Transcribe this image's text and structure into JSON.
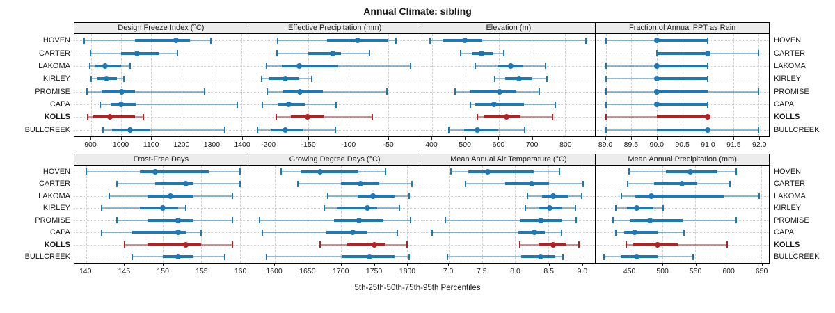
{
  "figure": {
    "title": "Annual Climate: sibling",
    "axis_caption": "5th-25th-50th-75th-95th Percentiles"
  },
  "chart_data": {
    "type": "scatter",
    "variant": "trellis dot plot with percentile intervals (5th, 25th, 50th, 75th, 95th); dot = median, thick bar = 25th-75th, thin capped line = 5th-95th",
    "stations": [
      "HOVEN",
      "CARTER",
      "LAKOMA",
      "KIRLEY",
      "PROMISE",
      "CAPA",
      "KOLLS",
      "BULLCREEK"
    ],
    "highlight_station": "KOLLS",
    "colors": {
      "series": "#1f77b4",
      "highlight": "#b22222",
      "header_bg": "#ececec",
      "grid": "#cfcfcf",
      "panel_border": "#000000"
    },
    "layout": {
      "rows": 2,
      "cols": 4,
      "legend": "none",
      "grid": "dashed",
      "station_labels": "both sides"
    },
    "panels": [
      {
        "title": "Design Freeze Index (°C)",
        "row": 0,
        "xlim": [
          845,
          1420
        ],
        "tick_values": [
          900,
          1000,
          1100,
          1200,
          1300,
          1400
        ],
        "tick_labels": [
          "900",
          "1000",
          "1100",
          "1200",
          "1300",
          "1400"
        ],
        "series": [
          {
            "station": "HOVEN",
            "percentiles": [
              877,
              1046,
              1182,
              1229,
              1298
            ]
          },
          {
            "station": "CARTER",
            "percentiles": [
              898,
              1001,
              1053,
              1126,
              1186
            ]
          },
          {
            "station": "LAKOMA",
            "percentiles": [
              895,
              915,
              947,
              1000,
              1030
            ]
          },
          {
            "station": "KIRLEY",
            "percentiles": [
              900,
              921,
              951,
              986,
              1010
            ]
          },
          {
            "station": "PROMISE",
            "percentiles": [
              887,
              935,
              1003,
              1046,
              1277
            ]
          },
          {
            "station": "CAPA",
            "percentiles": [
              930,
              965,
              1000,
              1049,
              1385
            ]
          },
          {
            "station": "KOLLS",
            "percentiles": [
              888,
              908,
              964,
              1046,
              1073
            ]
          },
          {
            "station": "BULLCREEK",
            "percentiles": [
              940,
              970,
              1030,
              1096,
              1344
            ]
          }
        ]
      },
      {
        "title": "Effective Precipitation (mm)",
        "row": 0,
        "xlim": [
          -226,
          -8
        ],
        "tick_values": [
          -200,
          -150,
          -100,
          -50
        ],
        "tick_labels": [
          "-200",
          "-150",
          "-100",
          "-50"
        ],
        "series": [
          {
            "station": "HOVEN",
            "percentiles": [
              -189,
              -127,
              -88,
              -50,
              -40
            ]
          },
          {
            "station": "CARTER",
            "percentiles": [
              -190,
              -150,
              -120,
              -109,
              -73
            ]
          },
          {
            "station": "LAKOMA",
            "percentiles": [
              -203,
              -184,
              -162,
              -113,
              -22
            ]
          },
          {
            "station": "KIRLEY",
            "percentiles": [
              -209,
              -200,
              -179,
              -162,
              -146
            ]
          },
          {
            "station": "PROMISE",
            "percentiles": [
              -202,
              -182,
              -161,
              -132,
              -51
            ]
          },
          {
            "station": "CAPA",
            "percentiles": [
              -208,
              -189,
              -175,
              -155,
              -115
            ]
          },
          {
            "station": "KOLLS",
            "percentiles": [
              -191,
              -172,
              -151,
              -130,
              -70
            ]
          },
          {
            "station": "BULLCREEK",
            "percentiles": [
              -214,
              -197,
              -179,
              -157,
              -116
            ]
          }
        ]
      },
      {
        "title": "Elevation (m)",
        "row": 0,
        "xlim": [
          370,
          890
        ],
        "tick_values": [
          400,
          500,
          600,
          700,
          800
        ],
        "tick_labels": [
          "400",
          "500",
          "600",
          "700",
          "800"
        ],
        "series": [
          {
            "station": "HOVEN",
            "percentiles": [
              395,
              432,
              499,
              550,
              863
            ]
          },
          {
            "station": "CARTER",
            "percentiles": [
              485,
              519,
              549,
              585,
              616
            ]
          },
          {
            "station": "LAKOMA",
            "percentiles": [
              529,
              597,
              636,
              675,
              741
            ]
          },
          {
            "station": "KIRLEY",
            "percentiles": [
              588,
              620,
              661,
              702,
              745
            ]
          },
          {
            "station": "PROMISE",
            "percentiles": [
              470,
              516,
              604,
              652,
              723
            ]
          },
          {
            "station": "CAPA",
            "percentiles": [
              516,
              529,
              586,
              677,
              770
            ]
          },
          {
            "station": "KOLLS",
            "percentiles": [
              536,
              558,
              623,
              666,
              761
            ]
          },
          {
            "station": "BULLCREEK",
            "percentiles": [
              450,
              496,
              536,
              598,
              678
            ]
          }
        ]
      },
      {
        "title": "Fraction of Annual PPT as Rain",
        "row": 0,
        "xlim": [
          88.8,
          92.2
        ],
        "tick_values": [
          89.0,
          89.5,
          90.0,
          90.5,
          91.0,
          91.5,
          92.0
        ],
        "tick_labels": [
          "89.0",
          "89.5",
          "90.0",
          "90.5",
          "91.0",
          "91.5",
          "92.0"
        ],
        "series": [
          {
            "station": "HOVEN",
            "percentiles": [
              89,
              90,
              90,
              91,
              91
            ]
          },
          {
            "station": "CARTER",
            "percentiles": [
              90,
              90,
              91,
              91,
              92
            ]
          },
          {
            "station": "LAKOMA",
            "percentiles": [
              89,
              90,
              90,
              91,
              91
            ]
          },
          {
            "station": "KIRLEY",
            "percentiles": [
              89,
              90,
              90,
              91,
              91
            ]
          },
          {
            "station": "PROMISE",
            "percentiles": [
              89,
              90,
              90,
              91,
              92
            ]
          },
          {
            "station": "CAPA",
            "percentiles": [
              89,
              90,
              90,
              91,
              91
            ]
          },
          {
            "station": "KOLLS",
            "percentiles": [
              89,
              90,
              91,
              91,
              91
            ]
          },
          {
            "station": "BULLCREEK",
            "percentiles": [
              89,
              90,
              91,
              91,
              92
            ]
          }
        ]
      },
      {
        "title": "Frost-Free Days",
        "row": 1,
        "xlim": [
          138.5,
          161
        ],
        "tick_values": [
          140,
          145,
          150,
          155,
          160
        ],
        "tick_labels": [
          "140",
          "145",
          "150",
          "155",
          "160"
        ],
        "series": [
          {
            "station": "HOVEN",
            "percentiles": [
              140,
              147,
              149,
              156,
              160
            ]
          },
          {
            "station": "CARTER",
            "percentiles": [
              144,
              149,
              153,
              154,
              160
            ]
          },
          {
            "station": "LAKOMA",
            "percentiles": [
              143,
              148,
              151,
              154,
              159
            ]
          },
          {
            "station": "KIRLEY",
            "percentiles": [
              142,
              147,
              150,
              152,
              153
            ]
          },
          {
            "station": "PROMISE",
            "percentiles": [
              144,
              148,
              152,
              154,
              159
            ]
          },
          {
            "station": "CAPA",
            "percentiles": [
              142,
              146,
              152,
              153,
              155
            ]
          },
          {
            "station": "KOLLS",
            "percentiles": [
              145,
              148,
              153,
              155,
              159
            ]
          },
          {
            "station": "BULLCREEK",
            "percentiles": [
              146,
              150,
              152,
              154,
              158
            ]
          }
        ]
      },
      {
        "title": "Growing Degree Days (°C)",
        "row": 1,
        "xlim": [
          1560,
          1822
        ],
        "tick_values": [
          1600,
          1650,
          1700,
          1750,
          1800
        ],
        "tick_labels": [
          "1600",
          "1650",
          "1700",
          "1750",
          "1800"
        ],
        "series": [
          {
            "station": "HOVEN",
            "percentiles": [
              1610,
              1639,
              1669,
              1727,
              1768
            ]
          },
          {
            "station": "CARTER",
            "percentiles": [
              1635,
              1700,
              1730,
              1758,
              1808
            ]
          },
          {
            "station": "LAKOMA",
            "percentiles": [
              1680,
              1726,
              1749,
              1781,
              1804
            ]
          },
          {
            "station": "KIRLEY",
            "percentiles": [
              1675,
              1694,
              1740,
              1755,
              1789
            ]
          },
          {
            "station": "PROMISE",
            "percentiles": [
              1577,
              1690,
              1728,
              1765,
              1806
            ]
          },
          {
            "station": "CAPA",
            "percentiles": [
              1581,
              1678,
              1718,
              1740,
              1786
            ]
          },
          {
            "station": "KOLLS",
            "percentiles": [
              1669,
              1710,
              1751,
              1768,
              1800
            ]
          },
          {
            "station": "BULLCREEK",
            "percentiles": [
              1588,
              1701,
              1744,
              1781,
              1804
            ]
          }
        ]
      },
      {
        "title": "Mean Annual Air Temperature (°C)",
        "row": 1,
        "xlim": [
          6.6,
          9.2
        ],
        "tick_values": [
          7.0,
          7.5,
          8.0,
          8.5,
          9.0
        ],
        "tick_labels": [
          "7.0",
          "7.5",
          "8.0",
          "8.5",
          "9.0"
        ],
        "series": [
          {
            "station": "HOVEN",
            "percentiles": [
              7.03,
              7.3,
              7.59,
              8.28,
              8.66
            ]
          },
          {
            "station": "CARTER",
            "percentiles": [
              7.25,
              7.85,
              8.25,
              8.51,
              9.02
            ]
          },
          {
            "station": "LAKOMA",
            "percentiles": [
              8.18,
              8.4,
              8.57,
              8.8,
              9.0
            ]
          },
          {
            "station": "KIRLEY",
            "percentiles": [
              8.15,
              8.35,
              8.52,
              8.7,
              8.9
            ]
          },
          {
            "station": "PROMISE",
            "percentiles": [
              6.95,
              8.08,
              8.38,
              8.7,
              8.91
            ]
          },
          {
            "station": "CAPA",
            "percentiles": [
              6.75,
              8.05,
              8.29,
              8.45,
              8.7
            ]
          },
          {
            "station": "KOLLS",
            "percentiles": [
              8.07,
              8.35,
              8.57,
              8.76,
              8.96
            ]
          },
          {
            "station": "BULLCREEK",
            "percentiles": [
              6.98,
              8.09,
              8.38,
              8.6,
              8.72
            ]
          }
        ]
      },
      {
        "title": "Mean Annual Precipitation (mm)",
        "row": 1,
        "xlim": [
          398,
          662
        ],
        "tick_values": [
          450,
          500,
          550,
          600,
          650
        ],
        "tick_labels": [
          "450",
          "500",
          "550",
          "600",
          "650"
        ],
        "series": [
          {
            "station": "HOVEN",
            "percentiles": [
              449,
              505,
              542,
              583,
              612
            ]
          },
          {
            "station": "CARTER",
            "percentiles": [
              447,
              487,
              529,
              553,
              603
            ]
          },
          {
            "station": "LAKOMA",
            "percentiles": [
              437,
              458,
              483,
              593,
              647
            ]
          },
          {
            "station": "KIRLEY",
            "percentiles": [
              429,
              446,
              460,
              486,
              501
            ]
          },
          {
            "station": "PROMISE",
            "percentiles": [
              424,
              451,
              480,
              530,
              612
            ]
          },
          {
            "station": "CAPA",
            "percentiles": [
              428,
              441,
              457,
              492,
              532
            ]
          },
          {
            "station": "KOLLS",
            "percentiles": [
              444,
              455,
              492,
              523,
              598
            ]
          },
          {
            "station": "BULLCREEK",
            "percentiles": [
              411,
              436,
              460,
              492,
              546
            ]
          }
        ]
      }
    ]
  }
}
